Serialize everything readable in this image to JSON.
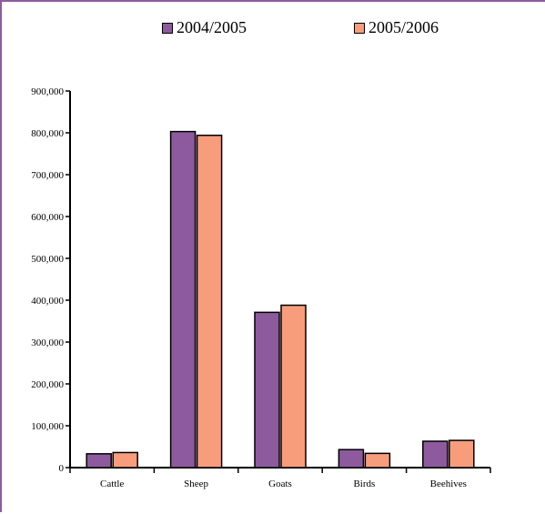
{
  "chart_data": {
    "type": "bar",
    "title": "",
    "xlabel": "",
    "ylabel": "",
    "categories": [
      "Cattle",
      "Sheep",
      "Goats",
      "Birds",
      "Beehives"
    ],
    "series": [
      {
        "name": "2004/2005",
        "color": "#8e5a9e",
        "values": [
          33000,
          803000,
          371000,
          43000,
          63000
        ]
      },
      {
        "name": "2005/2006",
        "color": "#f79d7c",
        "values": [
          36000,
          794000,
          388000,
          34000,
          65000
        ]
      }
    ],
    "ylim": [
      0,
      900000
    ],
    "yticks": [
      0,
      100000,
      200000,
      300000,
      400000,
      500000,
      600000,
      700000,
      800000,
      900000
    ],
    "ytick_labels": [
      "0",
      "100,000",
      "200,000",
      "300,000",
      "400,000",
      "500,000",
      "600,000",
      "700,000",
      "800,000",
      "900,000"
    ],
    "grid": false,
    "legend_position": "top"
  }
}
